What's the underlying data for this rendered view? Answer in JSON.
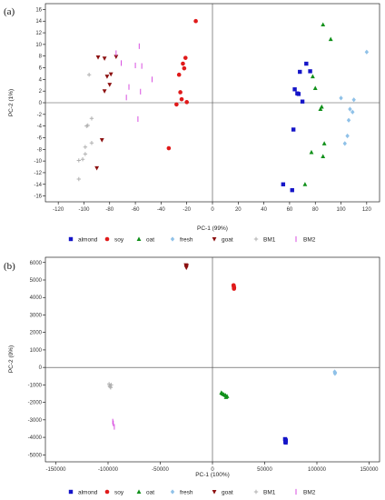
{
  "colors": {
    "almond": "#1515c8",
    "soy": "#e01a1a",
    "oat": "#10901a",
    "fresh": "#8fc1e8",
    "goat": "#8c1010",
    "BM1": "#b0b0b0",
    "BM2": "#d84fe0"
  },
  "legend": [
    "almond",
    "soy",
    "oat",
    "fresh",
    "goat",
    "BM1",
    "BM2"
  ],
  "chart_data": [
    {
      "panel_label": "(a)",
      "type": "scatter",
      "xlabel": "PC-1 (99%)",
      "ylabel": "PC-2 (1%)",
      "xlim": [
        -130,
        130
      ],
      "ylim": [
        -17,
        17
      ],
      "xticks": [
        -120,
        -100,
        -80,
        -60,
        -40,
        -20,
        0,
        20,
        40,
        60,
        80,
        100,
        120
      ],
      "yticks": [
        -16,
        -14,
        -12,
        -10,
        -8,
        -6,
        -4,
        -2,
        0,
        2,
        4,
        6,
        8,
        10,
        12,
        14,
        16
      ],
      "series": [
        {
          "name": "almond",
          "marker": "square",
          "points": [
            [
              55,
              -14
            ],
            [
              62,
              -15
            ],
            [
              63,
              -4.6
            ],
            [
              64,
              2.3
            ],
            [
              66,
              1.6
            ],
            [
              67,
              1.5
            ],
            [
              68,
              5.3
            ],
            [
              70,
              0.2
            ],
            [
              73,
              6.7
            ],
            [
              76,
              5.4
            ]
          ]
        },
        {
          "name": "soy",
          "marker": "circle",
          "points": [
            [
              -13,
              14
            ],
            [
              -34,
              -7.8
            ],
            [
              -28,
              -0.3
            ],
            [
              -26,
              4.8
            ],
            [
              -25,
              1.8
            ],
            [
              -24,
              0.6
            ],
            [
              -23,
              6.7
            ],
            [
              -22,
              5.9
            ],
            [
              -21,
              7.7
            ],
            [
              -20,
              0.1
            ]
          ]
        },
        {
          "name": "oat",
          "marker": "triangle-up",
          "points": [
            [
              72,
              -14
            ],
            [
              77,
              -8.5
            ],
            [
              78,
              4.5
            ],
            [
              80,
              2.5
            ],
            [
              84,
              -1.1
            ],
            [
              85,
              -0.7
            ],
            [
              86,
              -9.2
            ],
            [
              86,
              13.4
            ],
            [
              87,
              -7
            ],
            [
              92,
              10.9
            ]
          ]
        },
        {
          "name": "fresh",
          "marker": "diamond",
          "points": [
            [
              100,
              0.8
            ],
            [
              103,
              -7
            ],
            [
              105,
              -5.7
            ],
            [
              106,
              -3
            ],
            [
              107,
              -1.1
            ],
            [
              109,
              -1.6
            ],
            [
              110,
              0.5
            ],
            [
              120,
              8.7
            ]
          ]
        },
        {
          "name": "goat",
          "marker": "triangle-down",
          "points": [
            [
              -75,
              7.9
            ],
            [
              -80,
              3.1
            ],
            [
              -82,
              4.5
            ],
            [
              -84,
              2
            ],
            [
              -84,
              7.6
            ],
            [
              -89,
              7.8
            ],
            [
              -90,
              -11.2
            ],
            [
              -86,
              -6.4
            ],
            [
              -79,
              4.9
            ]
          ]
        },
        {
          "name": "BM1",
          "marker": "plus",
          "points": [
            [
              -96,
              4.8
            ],
            [
              -97,
              -3.9
            ],
            [
              -98,
              -4
            ],
            [
              -99,
              -8.8
            ],
            [
              -99,
              -7.6
            ],
            [
              -101,
              -9.7
            ],
            [
              -104,
              -9.9
            ],
            [
              -104,
              -13.1
            ],
            [
              -94,
              -2.7
            ],
            [
              -94,
              -6.9
            ]
          ]
        },
        {
          "name": "BM2",
          "marker": "bar",
          "points": [
            [
              -75,
              8.5
            ],
            [
              -71,
              6.8
            ],
            [
              -67,
              0.9
            ],
            [
              -65,
              2.7
            ],
            [
              -60,
              6.4
            ],
            [
              -58,
              -2.8
            ],
            [
              -57,
              9.7
            ],
            [
              -56,
              1.9
            ],
            [
              -55,
              6.3
            ],
            [
              -47,
              4
            ]
          ]
        }
      ]
    },
    {
      "panel_label": "(b)",
      "type": "scatter",
      "xlabel": "PC-1 (100%)",
      "ylabel": "PC-2 (0%)",
      "xlim": [
        -160000,
        160000
      ],
      "ylim": [
        -5400,
        6300
      ],
      "xticks": [
        -150000,
        -100000,
        -50000,
        0,
        50000,
        100000,
        150000
      ],
      "yticks": [
        -5000,
        -4000,
        -3000,
        -2000,
        -1000,
        0,
        1000,
        2000,
        3000,
        4000,
        5000,
        6000
      ],
      "series": [
        {
          "name": "almond",
          "marker": "square",
          "points": [
            [
              69500,
              -4100
            ],
            [
              69800,
              -4250
            ],
            [
              70000,
              -4150
            ],
            [
              70300,
              -4200
            ],
            [
              70100,
              -4300
            ]
          ]
        },
        {
          "name": "soy",
          "marker": "circle",
          "points": [
            [
              20200,
              4700
            ],
            [
              20500,
              4600
            ],
            [
              20700,
              4550
            ],
            [
              20400,
              4650
            ],
            [
              20600,
              4500
            ]
          ]
        },
        {
          "name": "oat",
          "marker": "triangle-up",
          "points": [
            [
              8500,
              -1450
            ],
            [
              9500,
              -1500
            ],
            [
              11000,
              -1550
            ],
            [
              12500,
              -1600
            ],
            [
              14000,
              -1650
            ],
            [
              13000,
              -1700
            ]
          ]
        },
        {
          "name": "fresh",
          "marker": "diamond",
          "points": [
            [
              117000,
              -250
            ],
            [
              117300,
              -350
            ],
            [
              117500,
              -300
            ]
          ]
        },
        {
          "name": "goat",
          "marker": "triangle-down",
          "points": [
            [
              -25500,
              5850
            ],
            [
              -25200,
              5750
            ],
            [
              -24900,
              5800
            ],
            [
              -25000,
              5700
            ],
            [
              -24700,
              5820
            ]
          ]
        },
        {
          "name": "BM1",
          "marker": "plus",
          "points": [
            [
              -99000,
              -950
            ],
            [
              -98500,
              -1050
            ],
            [
              -98000,
              -1100
            ],
            [
              -97500,
              -1150
            ],
            [
              -97000,
              -1000
            ]
          ]
        },
        {
          "name": "BM2",
          "marker": "bar",
          "points": [
            [
              -95500,
              -3100
            ],
            [
              -95000,
              -3200
            ],
            [
              -94000,
              -3400
            ]
          ]
        }
      ]
    }
  ]
}
